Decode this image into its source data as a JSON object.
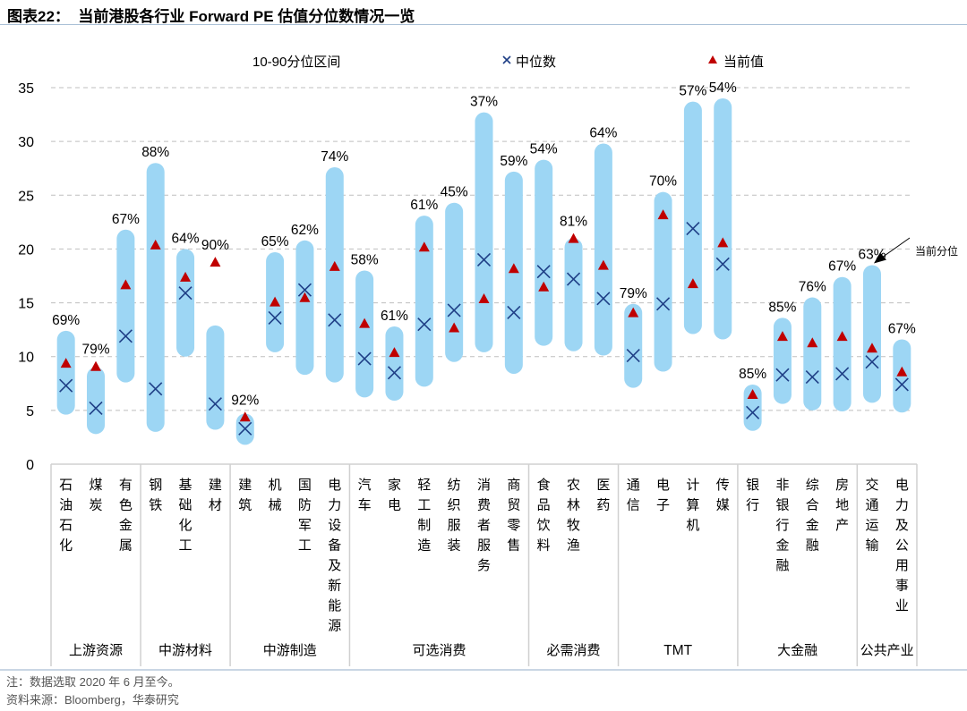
{
  "title": "图表22：  当前港股各行业 Forward PE 估值分位数情况一览",
  "notes": [
    "注：数据选取 2020 年 6 月至今。",
    "资料来源：Bloomberg，华泰研究"
  ],
  "chart_data": {
    "type": "range-bar",
    "title": "",
    "ylim": [
      0,
      35
    ],
    "yticks": [
      0,
      5,
      10,
      15,
      20,
      25,
      30,
      35
    ],
    "grid": true,
    "legend": {
      "placement": "top",
      "entries": [
        "10-90分位区间",
        "中位数",
        "当前值"
      ],
      "median_symbol": "×",
      "current_symbol": "▲"
    },
    "colors": {
      "range": "#9dd6f4",
      "median": "#1f3f86",
      "current": "#c00000",
      "grid": "#bfbfbf"
    },
    "annotation": "当前分位",
    "categories": [
      "石油石化",
      "煤炭",
      "有色金属",
      "钢铁",
      "基础化工",
      "建材",
      "建筑",
      "机械",
      "国防军工",
      "电力设备及新能源",
      "汽车",
      "家电",
      "轻工制造",
      "纺织服装",
      "消费者服务",
      "商贸零售",
      "食品饮料",
      "农林牧渔",
      "医药",
      "通信",
      "电子",
      "计算机",
      "传媒",
      "银行",
      "非银行金融",
      "综合金融",
      "房地产",
      "交通运输",
      "电力及公用事业"
    ],
    "p10": [
      4.6,
      2.8,
      7.6,
      3.0,
      10.0,
      3.2,
      1.8,
      10.4,
      8.3,
      7.6,
      6.2,
      5.9,
      7.2,
      9.5,
      10.4,
      8.4,
      11.0,
      10.5,
      10.1,
      7.1,
      8.6,
      12.1,
      11.6,
      3.1,
      5.6,
      5.0,
      4.9,
      5.7,
      4.8
    ],
    "p90": [
      12.4,
      9.0,
      21.8,
      28.0,
      20.0,
      12.9,
      4.7,
      19.7,
      20.8,
      27.6,
      18.0,
      12.8,
      23.1,
      24.3,
      32.7,
      27.2,
      28.3,
      21.0,
      29.8,
      14.9,
      25.3,
      33.7,
      34.0,
      7.4,
      13.6,
      15.5,
      17.4,
      18.5,
      11.6
    ],
    "median": [
      7.3,
      5.2,
      11.9,
      7.0,
      15.9,
      5.6,
      3.3,
      13.6,
      16.2,
      13.4,
      9.8,
      8.5,
      13.0,
      14.3,
      19.0,
      14.1,
      17.9,
      17.2,
      15.4,
      10.1,
      14.9,
      21.9,
      18.6,
      4.8,
      8.3,
      8.1,
      8.4,
      9.5,
      7.4
    ],
    "current": [
      9.3,
      9.0,
      16.6,
      20.3,
      17.3,
      18.7,
      4.3,
      15.0,
      15.4,
      18.3,
      13.0,
      10.3,
      20.1,
      12.6,
      15.3,
      18.1,
      16.4,
      20.9,
      18.4,
      14.0,
      23.1,
      16.7,
      20.5,
      6.4,
      11.8,
      11.2,
      11.8,
      10.7,
      8.5
    ],
    "percentile_labels": [
      "69%",
      "79%",
      "67%",
      "88%",
      "64%",
      "90%",
      "92%",
      "65%",
      "62%",
      "74%",
      "58%",
      "61%",
      "61%",
      "45%",
      "37%",
      "59%",
      "54%",
      "81%",
      "64%",
      "79%",
      "70%",
      "57%",
      "54%",
      "85%",
      "85%",
      "76%",
      "67%",
      "63%",
      "67%"
    ],
    "groups": [
      {
        "name": "上游资源",
        "count": 3
      },
      {
        "name": "中游材料",
        "count": 3
      },
      {
        "name": "中游制造",
        "count": 4
      },
      {
        "name": "可选消费",
        "count": 6
      },
      {
        "name": "必需消费",
        "count": 3
      },
      {
        "name": "TMT",
        "count": 4
      },
      {
        "name": "大金融",
        "count": 4
      },
      {
        "name": "公共产业",
        "count": 2
      }
    ]
  }
}
